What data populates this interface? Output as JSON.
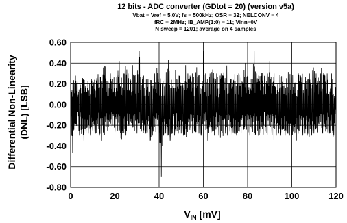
{
  "chart_data": {
    "type": "line",
    "title": "12 bits - ADC converter (GDtot = 20) (version v5a)",
    "subtitle": [
      "Vbat = Vref = 5.0V; fs = 500kHz; OSR = 32; NELCONV = 4",
      "fRC = 2MHz; IB_AMP(1:0) = 11; Vinn=0V",
      "N sweep = 1201; average on 4 samples"
    ],
    "xlabel": "V",
    "xlabel_sub": "IN",
    "xlabel_unit": " [mV]",
    "ylabel": [
      "Differential Non-Linearity",
      "(DNL) [LSB]"
    ],
    "xlim": [
      0,
      120
    ],
    "ylim": [
      -0.8,
      0.6
    ],
    "x_ticks": [
      0,
      20,
      40,
      60,
      80,
      100,
      120
    ],
    "y_ticks": [
      0.6,
      0.4,
      0.2,
      0.0,
      -0.2,
      -0.4,
      -0.6,
      -0.8
    ],
    "x_tick_labels": [
      "0",
      "20",
      "40",
      "60",
      "80",
      "100",
      "120"
    ],
    "y_tick_labels": [
      "0.60",
      "0.40",
      "0.20",
      "0.00",
      "-0.20",
      "-0.40",
      "-0.60",
      "-0.80"
    ],
    "grid": true,
    "series": [
      {
        "color": "#000000",
        "x": [
          0,
          1,
          2,
          3,
          4,
          5,
          6,
          7,
          8,
          9,
          10,
          11,
          12,
          13,
          14,
          15,
          16,
          17,
          18,
          19,
          20,
          21,
          22,
          23,
          24,
          25,
          26,
          27,
          28,
          29,
          30,
          31,
          32,
          33,
          34,
          35,
          36,
          37,
          38,
          39,
          40,
          41,
          42,
          43,
          44,
          45,
          46,
          47,
          48,
          49,
          50,
          51,
          52,
          53,
          54,
          55,
          56,
          57,
          58,
          59,
          60,
          61,
          62,
          63,
          64,
          65,
          66,
          67,
          68,
          69,
          70,
          71,
          72,
          73,
          74,
          75,
          76,
          77,
          78,
          79,
          80,
          81,
          82,
          83,
          84,
          85,
          86,
          87,
          88,
          89,
          90,
          91,
          92,
          93,
          94,
          95,
          96,
          97,
          98,
          99,
          100,
          101,
          102,
          103,
          104,
          105,
          106,
          107,
          108,
          109,
          110,
          111,
          112,
          113,
          114,
          115,
          116,
          117,
          118,
          119,
          120
        ],
        "y_high": [
          0.12,
          0.2,
          0.35,
          0.22,
          0.18,
          0.25,
          0.3,
          0.2,
          0.28,
          0.22,
          0.3,
          0.24,
          0.26,
          0.4,
          0.25,
          0.55,
          0.28,
          0.22,
          0.3,
          0.25,
          0.3,
          0.28,
          0.42,
          0.26,
          0.3,
          0.5,
          0.3,
          0.25,
          0.38,
          0.28,
          0.3,
          0.52,
          0.26,
          0.28,
          0.3,
          0.25,
          0.3,
          0.2,
          0.3,
          0.35,
          0.3,
          0.32,
          0.28,
          0.3,
          0.5,
          0.28,
          0.3,
          0.4,
          0.25,
          0.28,
          0.3,
          0.25,
          0.38,
          0.3,
          0.28,
          0.3,
          0.26,
          0.36,
          0.3,
          0.28,
          0.52,
          0.3,
          0.25,
          0.3,
          0.4,
          0.28,
          0.3,
          0.26,
          0.3,
          0.28,
          0.5,
          0.3,
          0.26,
          0.3,
          0.28,
          0.36,
          0.3,
          0.26,
          0.3,
          0.4,
          0.28,
          0.3,
          0.25,
          0.52,
          0.3,
          0.28,
          0.3,
          0.4,
          0.26,
          0.3,
          0.42,
          0.28,
          0.3,
          0.26,
          0.3,
          0.28,
          0.3,
          0.26,
          0.3,
          0.5,
          0.28,
          0.3,
          0.26,
          0.3,
          0.28,
          0.38,
          0.3,
          0.26,
          0.3,
          0.28,
          0.4,
          0.3,
          0.26,
          0.3,
          0.45,
          0.28,
          0.3,
          0.26,
          0.3,
          0.28,
          0.15
        ],
        "y_low": [
          -0.2,
          -0.55,
          -0.3,
          -0.25,
          -0.3,
          -0.28,
          -0.35,
          -0.3,
          -0.28,
          -0.3,
          -0.25,
          -0.3,
          -0.28,
          -0.3,
          -0.35,
          -0.3,
          -0.28,
          -0.3,
          -0.25,
          -0.3,
          -0.28,
          -0.3,
          -0.3,
          -0.35,
          -0.28,
          -0.3,
          -0.3,
          -0.28,
          -0.3,
          -0.35,
          -0.28,
          -0.3,
          -0.26,
          -0.3,
          -0.28,
          -0.3,
          -0.35,
          -0.3,
          -0.28,
          -0.3,
          -0.3,
          -0.7,
          -0.3,
          -0.28,
          -0.3,
          -0.35,
          -0.28,
          -0.3,
          -0.26,
          -0.3,
          -0.28,
          -0.3,
          -0.35,
          -0.3,
          -0.28,
          -0.3,
          -0.26,
          -0.3,
          -0.28,
          -0.3,
          -0.3,
          -0.28,
          -0.35,
          -0.3,
          -0.26,
          -0.3,
          -0.28,
          -0.3,
          -0.4,
          -0.3,
          -0.28,
          -0.3,
          -0.26,
          -0.3,
          -0.28,
          -0.3,
          -0.35,
          -0.3,
          -0.28,
          -0.3,
          -0.26,
          -0.3,
          -0.28,
          -0.3,
          -0.3,
          -0.38,
          -0.28,
          -0.3,
          -0.26,
          -0.3,
          -0.28,
          -0.3,
          -0.35,
          -0.3,
          -0.28,
          -0.3,
          -0.26,
          -0.3,
          -0.28,
          -0.3,
          -0.3,
          -0.28,
          -0.35,
          -0.3,
          -0.26,
          -0.3,
          -0.28,
          -0.3,
          -0.38,
          -0.3,
          -0.28,
          -0.3,
          -0.26,
          -0.3,
          -0.28,
          -0.3,
          -0.3,
          -0.28,
          -0.35,
          -0.3,
          -0.1
        ]
      }
    ]
  }
}
